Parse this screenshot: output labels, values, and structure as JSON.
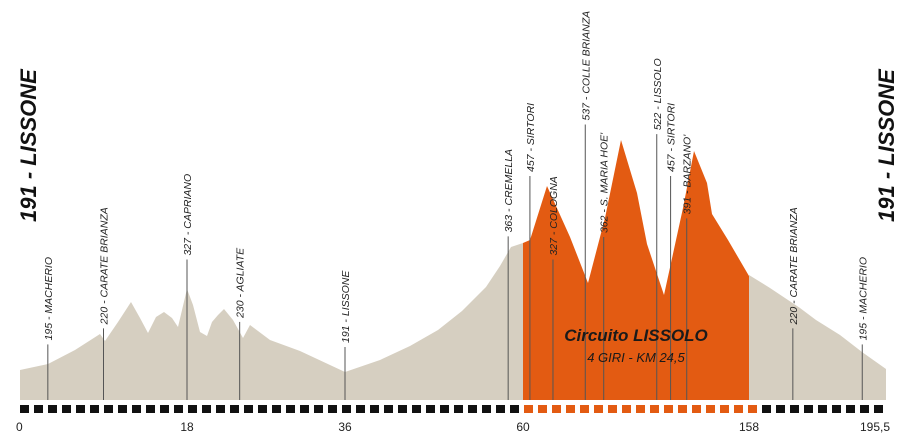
{
  "chart_data": {
    "type": "area",
    "title": "",
    "xlabel": "",
    "ylabel": "",
    "start_label": "191 - LISSONE",
    "finish_label": "191 - LISSONE",
    "circuit": {
      "title": "Circuito LISSOLO",
      "subtitle": "4 GIRI - KM 24,5",
      "color": "#e35b12"
    },
    "colors": {
      "profile": "#d6cfc1",
      "circuit": "#e35b12",
      "scale_dark": "#111111",
      "scale_circuit": "#e35b12",
      "marker_line": "#555555"
    },
    "x_ticks": [
      {
        "label": "0",
        "km": 0
      },
      {
        "label": "18",
        "km": 18
      },
      {
        "label": "36",
        "km": 36
      },
      {
        "label": "60",
        "km": 60
      },
      {
        "label": "158",
        "km": 158
      },
      {
        "label": "195,5",
        "km": 195.5
      }
    ],
    "waypoints": [
      {
        "label": "195 - MACHERIO",
        "km": 3,
        "elev": 195
      },
      {
        "label": "220 - CARATE BRIANZA",
        "km": 9,
        "elev": 220
      },
      {
        "label": "327 - CAPRIANO",
        "km": 18,
        "elev": 327
      },
      {
        "label": "230 - AGLIATE",
        "km": 24,
        "elev": 230
      },
      {
        "label": "191 - LISSONE",
        "km": 36,
        "elev": 191
      },
      {
        "label": "363 - CREMELLA",
        "km": 58,
        "elev": 363
      },
      {
        "label": "457 - SIRTORI",
        "km": 63,
        "elev": 457
      },
      {
        "label": "327 - COLOGNA",
        "km": 73,
        "elev": 327
      },
      {
        "label": "537 - COLLE BRIANZA",
        "km": 87,
        "elev": 537
      },
      {
        "label": "362 - S. MARIA HOE'",
        "km": 95,
        "elev": 362
      },
      {
        "label": "522 - LISSOLO",
        "km": 118,
        "elev": 522
      },
      {
        "label": "457 - SIRTORI",
        "km": 124,
        "elev": 457
      },
      {
        "label": "391 - BARZANO'",
        "km": 131,
        "elev": 391
      },
      {
        "label": "220 - CARATE BRIANZA",
        "km": 170,
        "elev": 220
      },
      {
        "label": "195 - MACHERIO",
        "km": 189,
        "elev": 195
      }
    ]
  }
}
